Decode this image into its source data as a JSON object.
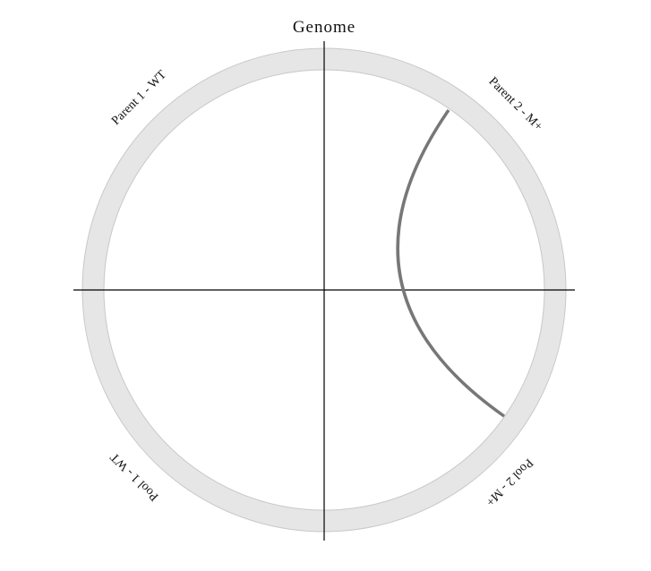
{
  "title": "Genome",
  "segments": [
    {
      "id": "parent1",
      "label": "Parent 1 - WT"
    },
    {
      "id": "parent2",
      "label": "Parent 2 - M+"
    },
    {
      "id": "pool2",
      "label": "Pool 2 - M+"
    },
    {
      "id": "pool1",
      "label": "Pool 1 - WT"
    }
  ],
  "colors": {
    "ring_fill": "#e6e6e6",
    "ring_stroke": "#c8c8c8",
    "axis": "#000000",
    "link": "#777777",
    "text": "#111111"
  },
  "link": {
    "from": "Parent 2 - M+",
    "to": "Pool 2 - M+"
  }
}
